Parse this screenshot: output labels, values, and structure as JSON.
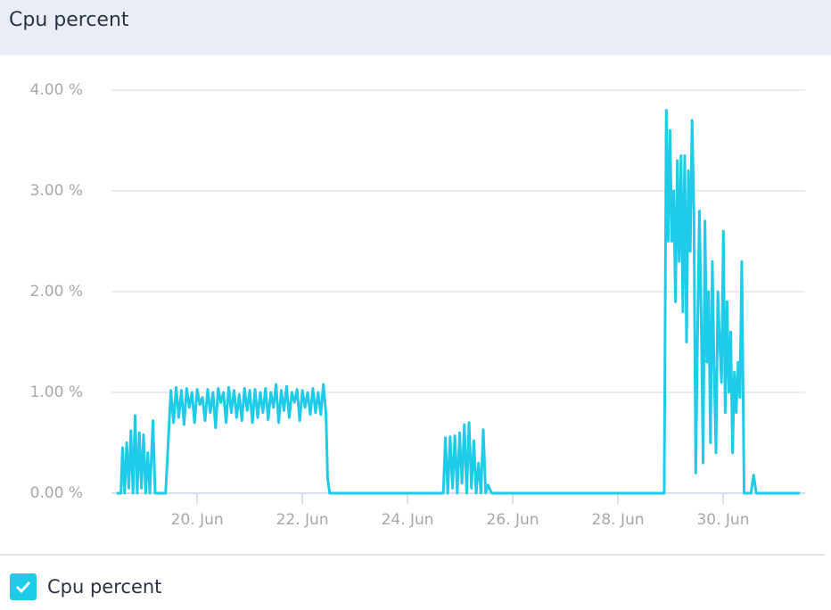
{
  "chart_data": {
    "type": "line",
    "title": "Cpu percent",
    "x": [
      18.47,
      18.55,
      18.58,
      18.62,
      18.66,
      18.7,
      18.74,
      18.78,
      18.82,
      18.86,
      18.9,
      18.94,
      18.98,
      19.02,
      19.06,
      19.1,
      19.16,
      19.2,
      19.4,
      19.5,
      19.55,
      19.6,
      19.65,
      19.7,
      19.75,
      19.8,
      19.85,
      19.9,
      19.95,
      20.0,
      20.05,
      20.1,
      20.15,
      20.2,
      20.25,
      20.3,
      20.35,
      20.4,
      20.45,
      20.5,
      20.55,
      20.6,
      20.65,
      20.7,
      20.75,
      20.8,
      20.85,
      20.9,
      20.95,
      21.0,
      21.05,
      21.1,
      21.15,
      21.2,
      21.25,
      21.3,
      21.35,
      21.4,
      21.45,
      21.5,
      21.55,
      21.6,
      21.65,
      21.7,
      21.75,
      21.8,
      21.85,
      21.9,
      21.95,
      22.0,
      22.05,
      22.1,
      22.15,
      22.2,
      22.25,
      22.3,
      22.35,
      22.4,
      22.45,
      22.48,
      22.52,
      24.68,
      24.72,
      24.765,
      24.81,
      24.855,
      24.9,
      24.945,
      24.99,
      25.035,
      25.08,
      25.125,
      25.17,
      25.215,
      25.26,
      25.305,
      25.35,
      25.395,
      25.44,
      25.485,
      25.53,
      25.6,
      28.88,
      28.92,
      28.955,
      28.99,
      29.025,
      29.06,
      29.095,
      29.13,
      29.165,
      29.2,
      29.235,
      29.27,
      29.305,
      29.34,
      29.375,
      29.41,
      29.445,
      29.48,
      29.515,
      29.55,
      29.585,
      29.62,
      29.655,
      29.69,
      29.725,
      29.76,
      29.795,
      29.83,
      29.865,
      29.9,
      29.935,
      29.97,
      30.005,
      30.04,
      30.075,
      30.11,
      30.145,
      30.18,
      30.215,
      30.25,
      30.285,
      30.32,
      30.355,
      30.4,
      30.53,
      30.58,
      30.63,
      31.46
    ],
    "series": [
      {
        "name": "Cpu percent",
        "color": "#1ecbe8",
        "values": [
          0,
          0,
          0.45,
          0,
          0.5,
          0.05,
          0.62,
          0,
          0.77,
          0,
          0.6,
          0.05,
          0.58,
          0,
          0.4,
          0,
          0.72,
          0,
          0,
          1.02,
          0.7,
          1.05,
          0.75,
          1.02,
          0.68,
          1.04,
          0.85,
          1.0,
          0.7,
          1.03,
          0.88,
          0.95,
          0.72,
          1.03,
          0.8,
          1.0,
          0.65,
          1.04,
          0.9,
          1.0,
          0.7,
          1.05,
          0.8,
          1.02,
          0.75,
          0.98,
          0.72,
          1.04,
          0.82,
          1.02,
          0.7,
          1.03,
          0.75,
          1.0,
          0.8,
          1.04,
          0.73,
          1.0,
          0.85,
          1.08,
          0.7,
          1.02,
          0.82,
          1.06,
          0.75,
          1.0,
          0.9,
          1.03,
          0.72,
          1.02,
          0.85,
          1.0,
          0.78,
          1.04,
          0.8,
          1.0,
          0.78,
          1.08,
          0.78,
          0.15,
          0,
          0,
          0.55,
          0,
          0.56,
          0.05,
          0.57,
          0,
          0.6,
          0.1,
          0.68,
          0,
          0.7,
          0.05,
          0.52,
          0,
          0.3,
          0,
          0.63,
          0,
          0.08,
          0,
          0,
          3.8,
          2.5,
          3.6,
          2.5,
          3.0,
          1.9,
          3.3,
          2.3,
          3.35,
          1.8,
          3.35,
          1.5,
          3.2,
          2.4,
          3.7,
          2.8,
          0.2,
          1.6,
          2.8,
          1.7,
          0.3,
          2.7,
          1.3,
          2.0,
          0.5,
          2.3,
          1.2,
          0.4,
          2.0,
          1.5,
          1.1,
          2.6,
          0.8,
          1.9,
          1.0,
          1.6,
          0.4,
          1.2,
          0.8,
          1.3,
          0.95,
          2.3,
          0,
          0,
          0.18,
          0,
          0
        ]
      }
    ],
    "xlim": [
      18.37,
      31.56
    ],
    "xticks": [
      {
        "value": 20,
        "label": "20. Jun"
      },
      {
        "value": 22,
        "label": "22. Jun"
      },
      {
        "value": 24,
        "label": "24. Jun"
      },
      {
        "value": 26,
        "label": "26. Jun"
      },
      {
        "value": 28,
        "label": "28. Jun"
      },
      {
        "value": 30,
        "label": "30. Jun"
      }
    ],
    "ylim": [
      0,
      4
    ],
    "yticks": [
      {
        "value": 0,
        "label": "0.00 %"
      },
      {
        "value": 1,
        "label": "1.00 %"
      },
      {
        "value": 2,
        "label": "2.00 %"
      },
      {
        "value": 3,
        "label": "3.00 %"
      },
      {
        "value": 4,
        "label": "4.00 %"
      }
    ],
    "grid": true
  }
}
